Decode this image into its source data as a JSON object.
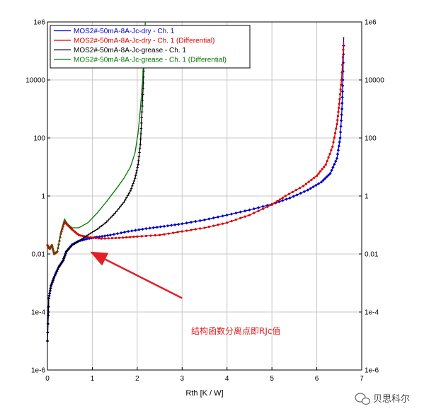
{
  "chart_data": {
    "type": "line",
    "title": "",
    "xlabel": "Rth  [K / W]",
    "ylabel": "",
    "xlim": [
      0,
      7
    ],
    "ylim": [
      1e-06,
      1000000.0
    ],
    "yscale": "log",
    "grid": true,
    "legend_position": "top-left",
    "x_ticks": [
      "0",
      "1",
      "2",
      "3",
      "4",
      "5",
      "6",
      "7"
    ],
    "y_ticks": [
      "1e-6",
      "1e-4",
      "0.01",
      "1",
      "100",
      "10000",
      "1e6"
    ],
    "series": [
      {
        "name": "MOS2#-50mA-8A-Jc-dry - Ch. 1",
        "color": "#0000cc",
        "marker": "diamond",
        "points": [
          [
            0.0,
            1e-05
          ],
          [
            0.03,
            0.0003
          ],
          [
            0.08,
            0.0008
          ],
          [
            0.15,
            0.0016
          ],
          [
            0.25,
            0.0035
          ],
          [
            0.35,
            0.006
          ],
          [
            0.42,
            0.012
          ],
          [
            0.55,
            0.021
          ],
          [
            0.7,
            0.028
          ],
          [
            0.9,
            0.034
          ],
          [
            1.1,
            0.038
          ],
          [
            1.4,
            0.045
          ],
          [
            1.8,
            0.06
          ],
          [
            2.2,
            0.075
          ],
          [
            2.6,
            0.09
          ],
          [
            3.0,
            0.11
          ],
          [
            3.5,
            0.15
          ],
          [
            4.0,
            0.22
          ],
          [
            4.5,
            0.33
          ],
          [
            5.0,
            0.52
          ],
          [
            5.4,
            0.85
          ],
          [
            5.8,
            1.6
          ],
          [
            6.1,
            3.0
          ],
          [
            6.3,
            6.0
          ],
          [
            6.45,
            20
          ],
          [
            6.52,
            100
          ],
          [
            6.56,
            1000
          ],
          [
            6.58,
            10000
          ],
          [
            6.6,
            300000
          ]
        ]
      },
      {
        "name": "MOS2#-50mA-8A-Jc-dry - Ch. 1 (Differential)",
        "color": "#dd0000",
        "marker": "dot",
        "points": [
          [
            0.0,
            0.02
          ],
          [
            0.05,
            0.015
          ],
          [
            0.1,
            0.02
          ],
          [
            0.15,
            0.01
          ],
          [
            0.22,
            0.012
          ],
          [
            0.3,
            0.05
          ],
          [
            0.38,
            0.13
          ],
          [
            0.45,
            0.1
          ],
          [
            0.55,
            0.07
          ],
          [
            0.7,
            0.045
          ],
          [
            0.9,
            0.038
          ],
          [
            1.2,
            0.034
          ],
          [
            1.6,
            0.036
          ],
          [
            2.0,
            0.04
          ],
          [
            2.5,
            0.045
          ],
          [
            3.0,
            0.06
          ],
          [
            3.5,
            0.08
          ],
          [
            4.0,
            0.12
          ],
          [
            4.5,
            0.22
          ],
          [
            5.0,
            0.5
          ],
          [
            5.3,
            1.0
          ],
          [
            5.7,
            2.2
          ],
          [
            6.0,
            5.0
          ],
          [
            6.2,
            12
          ],
          [
            6.35,
            50
          ],
          [
            6.45,
            300
          ],
          [
            6.5,
            1500
          ],
          [
            6.55,
            10000
          ],
          [
            6.6,
            200000
          ]
        ]
      },
      {
        "name": "MOS2#-50mA-8A-Jc-grease - Ch. 1",
        "color": "#000000",
        "marker": "tick",
        "points": [
          [
            0.0,
            1e-05
          ],
          [
            0.03,
            0.0003
          ],
          [
            0.08,
            0.0008
          ],
          [
            0.15,
            0.0016
          ],
          [
            0.25,
            0.0035
          ],
          [
            0.35,
            0.006
          ],
          [
            0.42,
            0.012
          ],
          [
            0.55,
            0.02
          ],
          [
            0.7,
            0.028
          ],
          [
            0.9,
            0.045
          ],
          [
            1.1,
            0.07
          ],
          [
            1.3,
            0.12
          ],
          [
            1.5,
            0.25
          ],
          [
            1.7,
            0.6
          ],
          [
            1.85,
            1.5
          ],
          [
            1.95,
            4
          ],
          [
            2.02,
            12
          ],
          [
            2.07,
            60
          ],
          [
            2.1,
            500
          ],
          [
            2.13,
            5000
          ],
          [
            2.15,
            50000
          ],
          [
            2.17,
            300000
          ]
        ]
      },
      {
        "name": "MOS2#-50mA-8A-Jc-grease - Ch. 1 (Differential)",
        "color": "#007700",
        "marker": "none",
        "points": [
          [
            0.0,
            0.02
          ],
          [
            0.05,
            0.015
          ],
          [
            0.1,
            0.02
          ],
          [
            0.15,
            0.01
          ],
          [
            0.22,
            0.012
          ],
          [
            0.3,
            0.06
          ],
          [
            0.38,
            0.16
          ],
          [
            0.45,
            0.11
          ],
          [
            0.55,
            0.08
          ],
          [
            0.7,
            0.08
          ],
          [
            0.9,
            0.12
          ],
          [
            1.1,
            0.25
          ],
          [
            1.3,
            0.6
          ],
          [
            1.5,
            1.5
          ],
          [
            1.7,
            4
          ],
          [
            1.85,
            10
          ],
          [
            1.95,
            30
          ],
          [
            2.02,
            150
          ],
          [
            2.07,
            1000
          ],
          [
            2.12,
            10000
          ],
          [
            2.15,
            100000
          ],
          [
            2.18,
            1000000
          ]
        ]
      }
    ],
    "annotations": [
      {
        "text": "结构函数分离点即RJc值",
        "color": "#e31e24",
        "arrow_from": [
          3.0,
          0.0003
        ],
        "arrow_to": [
          0.95,
          0.012
        ]
      }
    ]
  },
  "watermark": {
    "text": "贝思科尔",
    "icon": "wechat-icon"
  }
}
